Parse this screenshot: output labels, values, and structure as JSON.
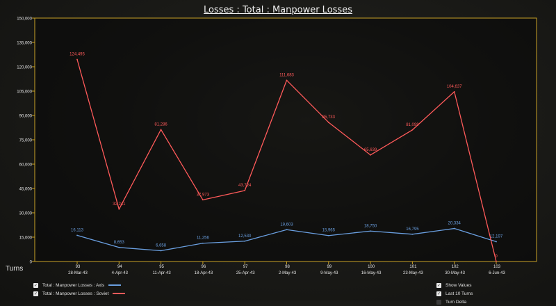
{
  "title": "Losses : Total : Manpower Losses",
  "chart_data": {
    "type": "line",
    "xlabel": "Turns",
    "ylim": [
      0,
      150000
    ],
    "yticks": [
      0,
      15000,
      30000,
      45000,
      60000,
      75000,
      90000,
      105000,
      120000,
      135000,
      150000
    ],
    "ytick_labels": [
      "0",
      "15,000",
      "30,000",
      "45,000",
      "60,000",
      "75,000",
      "90,000",
      "105,000",
      "120,000",
      "135,000",
      "150,000"
    ],
    "turns": [
      "93",
      "94",
      "95",
      "96",
      "97",
      "98",
      "99",
      "100",
      "101",
      "102",
      "103"
    ],
    "dates": [
      "28-Mar-43",
      "4-Apr-43",
      "11-Apr-43",
      "18-Apr-43",
      "25-Apr-43",
      "2-May-43",
      "9-May-43",
      "16-May-43",
      "23-May-43",
      "30-May-43",
      "6-Jun-43"
    ],
    "series": [
      {
        "name": "Total : Manpower Losses : Axis",
        "color": "#6a9fe0",
        "values": [
          16113,
          8653,
          6658,
          11256,
          12530,
          19603,
          15965,
          18750,
          16795,
          20334,
          12197
        ],
        "labels": [
          "16,113",
          "8,653",
          "6,658",
          "11,256",
          "12,530",
          "19,603",
          "15,965",
          "18,750",
          "16,795",
          "20,334",
          "12,197"
        ]
      },
      {
        "name": "Total : Manpower Losses : Soviet",
        "color": "#ff5a5a",
        "values": [
          124495,
          32241,
          81286,
          37973,
          43724,
          111683,
          85733,
          65639,
          81099,
          104637,
          0
        ],
        "labels": [
          "124,495",
          "32,241",
          "81,286",
          "37,973",
          "43,724",
          "111,683",
          "85,733",
          "65,639",
          "81,099",
          "104,637",
          "0"
        ]
      }
    ],
    "grid": false,
    "legend_position": "bottom-left"
  },
  "options": {
    "show_values": "Show Values",
    "last_10_turns": "Last 10 Turns",
    "turn_delta": "Turn Delta"
  }
}
